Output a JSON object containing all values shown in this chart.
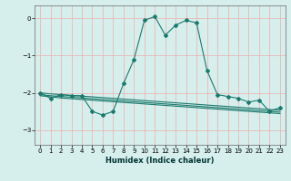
{
  "xlabel": "Humidex (Indice chaleur)",
  "ylabel": "",
  "background_color": "#d6efec",
  "grid_color": "#e8b8b8",
  "line_color": "#1a7a6e",
  "xlim": [
    -0.5,
    23.5
  ],
  "ylim": [
    -3.4,
    0.35
  ],
  "yticks": [
    0,
    -1,
    -2,
    -3
  ],
  "xticks": [
    0,
    1,
    2,
    3,
    4,
    5,
    6,
    7,
    8,
    9,
    10,
    11,
    12,
    13,
    14,
    15,
    16,
    17,
    18,
    19,
    20,
    21,
    22,
    23
  ],
  "series1_x": [
    0,
    1,
    2,
    3,
    4,
    5,
    6,
    7,
    8,
    9,
    10,
    11,
    12,
    13,
    14,
    15,
    16,
    17,
    18,
    19,
    20,
    21,
    22,
    23
  ],
  "series1_y": [
    -2.0,
    -2.15,
    -2.05,
    -2.08,
    -2.08,
    -2.5,
    -2.6,
    -2.5,
    -1.75,
    -1.1,
    -0.05,
    0.05,
    -0.45,
    -0.18,
    -0.05,
    -0.12,
    -1.4,
    -2.05,
    -2.1,
    -2.15,
    -2.25,
    -2.2,
    -2.5,
    -2.4
  ],
  "series2_x": [
    0,
    1,
    2,
    3,
    4,
    5,
    6,
    7,
    8,
    9,
    10,
    11,
    12,
    13,
    14,
    15,
    16,
    17,
    18,
    19,
    20,
    21,
    22,
    23
  ],
  "series2_y": [
    -2.0,
    -2.03,
    -2.05,
    -2.07,
    -2.09,
    -2.11,
    -2.13,
    -2.15,
    -2.17,
    -2.19,
    -2.21,
    -2.23,
    -2.25,
    -2.27,
    -2.29,
    -2.31,
    -2.33,
    -2.35,
    -2.37,
    -2.39,
    -2.41,
    -2.43,
    -2.45,
    -2.47
  ],
  "series3_x": [
    0,
    1,
    2,
    3,
    4,
    5,
    6,
    7,
    8,
    9,
    10,
    11,
    12,
    13,
    14,
    15,
    16,
    17,
    18,
    19,
    20,
    21,
    22,
    23
  ],
  "series3_y": [
    -2.05,
    -2.08,
    -2.1,
    -2.12,
    -2.14,
    -2.16,
    -2.18,
    -2.2,
    -2.22,
    -2.24,
    -2.26,
    -2.28,
    -2.3,
    -2.32,
    -2.34,
    -2.36,
    -2.38,
    -2.4,
    -2.42,
    -2.44,
    -2.46,
    -2.48,
    -2.5,
    -2.52
  ],
  "series4_x": [
    0,
    1,
    2,
    3,
    4,
    5,
    6,
    7,
    8,
    9,
    10,
    11,
    12,
    13,
    14,
    15,
    16,
    17,
    18,
    19,
    20,
    21,
    22,
    23
  ],
  "series4_y": [
    -2.08,
    -2.11,
    -2.14,
    -2.16,
    -2.18,
    -2.2,
    -2.22,
    -2.24,
    -2.26,
    -2.28,
    -2.3,
    -2.32,
    -2.34,
    -2.36,
    -2.38,
    -2.4,
    -2.42,
    -2.44,
    -2.46,
    -2.48,
    -2.5,
    -2.52,
    -2.54,
    -2.56
  ]
}
